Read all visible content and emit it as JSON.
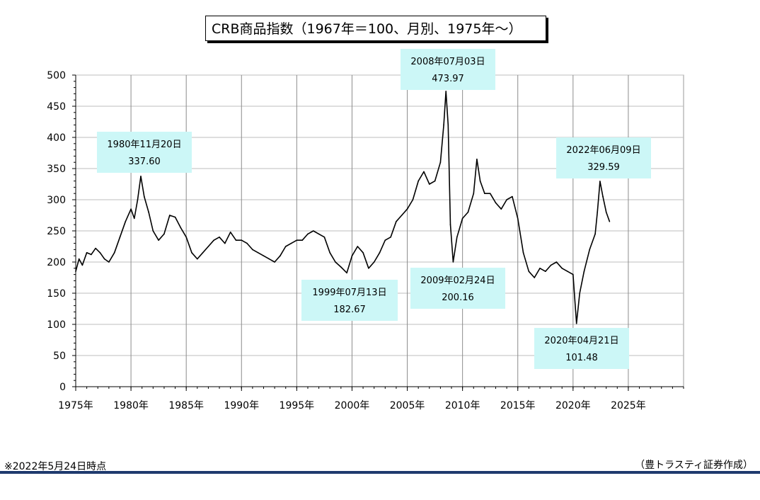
{
  "header": {
    "title": "CRB商品指数（1967年＝100、月別、1975年～）"
  },
  "footer": {
    "note": "※2022年5月24日時点",
    "credit": "（豊トラスティ証券作成）"
  },
  "colors": {
    "line": "#000000",
    "grid": "#bdbdbd",
    "annotation_bg": "#ccf7f7",
    "rule": "#1f3a6e"
  },
  "chart_data": {
    "type": "line",
    "title": "CRB商品指数（1967年＝100、月別、1975年～）",
    "xlabel": "",
    "ylabel": "",
    "xlim": [
      1975,
      2030
    ],
    "ylim": [
      0,
      500
    ],
    "x_ticks": [
      1975,
      1980,
      1985,
      1990,
      1995,
      2000,
      2005,
      2010,
      2015,
      2020,
      2025
    ],
    "x_tick_labels": [
      "1975年",
      "1980年",
      "1985年",
      "1990年",
      "1995年",
      "2000年",
      "2005年",
      "2010年",
      "2015年",
      "2020年",
      "2025年"
    ],
    "y_ticks": [
      0,
      50,
      100,
      150,
      200,
      250,
      300,
      350,
      400,
      450,
      500
    ],
    "grid": true,
    "legend": "none",
    "series": [
      {
        "x": [
          1975.0,
          1975.3,
          1975.6,
          1976.0,
          1976.4,
          1976.8,
          1977.2,
          1977.6,
          1978.0,
          1978.5,
          1979.0,
          1979.5,
          1980.0,
          1980.3,
          1980.6,
          1980.89,
          1981.2,
          1981.6,
          1982.0,
          1982.5,
          1983.0,
          1983.5,
          1984.0,
          1984.5,
          1985.0,
          1985.5,
          1986.0,
          1986.5,
          1987.0,
          1987.5,
          1988.0,
          1988.5,
          1989.0,
          1989.5,
          1990.0,
          1990.5,
          1991.0,
          1991.5,
          1992.0,
          1992.5,
          1993.0,
          1993.5,
          1994.0,
          1994.5,
          1995.0,
          1995.5,
          1996.0,
          1996.5,
          1997.0,
          1997.5,
          1998.0,
          1998.5,
          1999.0,
          1999.53,
          2000.0,
          2000.5,
          2001.0,
          2001.5,
          2002.0,
          2002.5,
          2003.0,
          2003.5,
          2004.0,
          2004.5,
          2005.0,
          2005.5,
          2006.0,
          2006.5,
          2007.0,
          2007.5,
          2008.0,
          2008.3,
          2008.5,
          2008.7,
          2008.9,
          2009.15,
          2009.5,
          2010.0,
          2010.5,
          2011.0,
          2011.3,
          2011.6,
          2012.0,
          2012.5,
          2013.0,
          2013.5,
          2014.0,
          2014.5,
          2015.0,
          2015.5,
          2016.0,
          2016.5,
          2017.0,
          2017.5,
          2018.0,
          2018.5,
          2019.0,
          2019.5,
          2020.0,
          2020.31,
          2020.6,
          2021.0,
          2021.5,
          2022.0,
          2022.2,
          2022.44,
          2022.7,
          2023.0,
          2023.3
        ],
        "y": [
          185,
          205,
          195,
          215,
          212,
          222,
          215,
          205,
          200,
          215,
          240,
          265,
          285,
          270,
          300,
          337.6,
          305,
          280,
          250,
          235,
          245,
          275,
          272,
          255,
          240,
          215,
          205,
          215,
          225,
          235,
          240,
          230,
          248,
          235,
          235,
          230,
          220,
          215,
          210,
          205,
          200,
          210,
          225,
          230,
          235,
          235,
          245,
          250,
          245,
          240,
          215,
          200,
          192,
          182.67,
          210,
          225,
          215,
          190,
          200,
          215,
          235,
          240,
          265,
          275,
          285,
          300,
          330,
          345,
          325,
          330,
          360,
          420,
          473.97,
          420,
          260,
          200.16,
          240,
          270,
          280,
          310,
          365,
          330,
          310,
          310,
          295,
          285,
          300,
          305,
          270,
          215,
          185,
          175,
          190,
          185,
          195,
          200,
          190,
          185,
          180,
          101.48,
          150,
          185,
          220,
          245,
          280,
          329.59,
          305,
          280,
          265
        ]
      }
    ],
    "annotations": [
      {
        "label_date": "1980年11月20日",
        "label_value": "337.60"
      },
      {
        "label_date": "1999年07月13日",
        "label_value": "182.67"
      },
      {
        "label_date": "2008年07月03日",
        "label_value": "473.97"
      },
      {
        "label_date": "2009年02月24日",
        "label_value": "200.16"
      },
      {
        "label_date": "2020年04月21日",
        "label_value": "101.48"
      },
      {
        "label_date": "2022年06月09日",
        "label_value": "329.59"
      }
    ]
  }
}
